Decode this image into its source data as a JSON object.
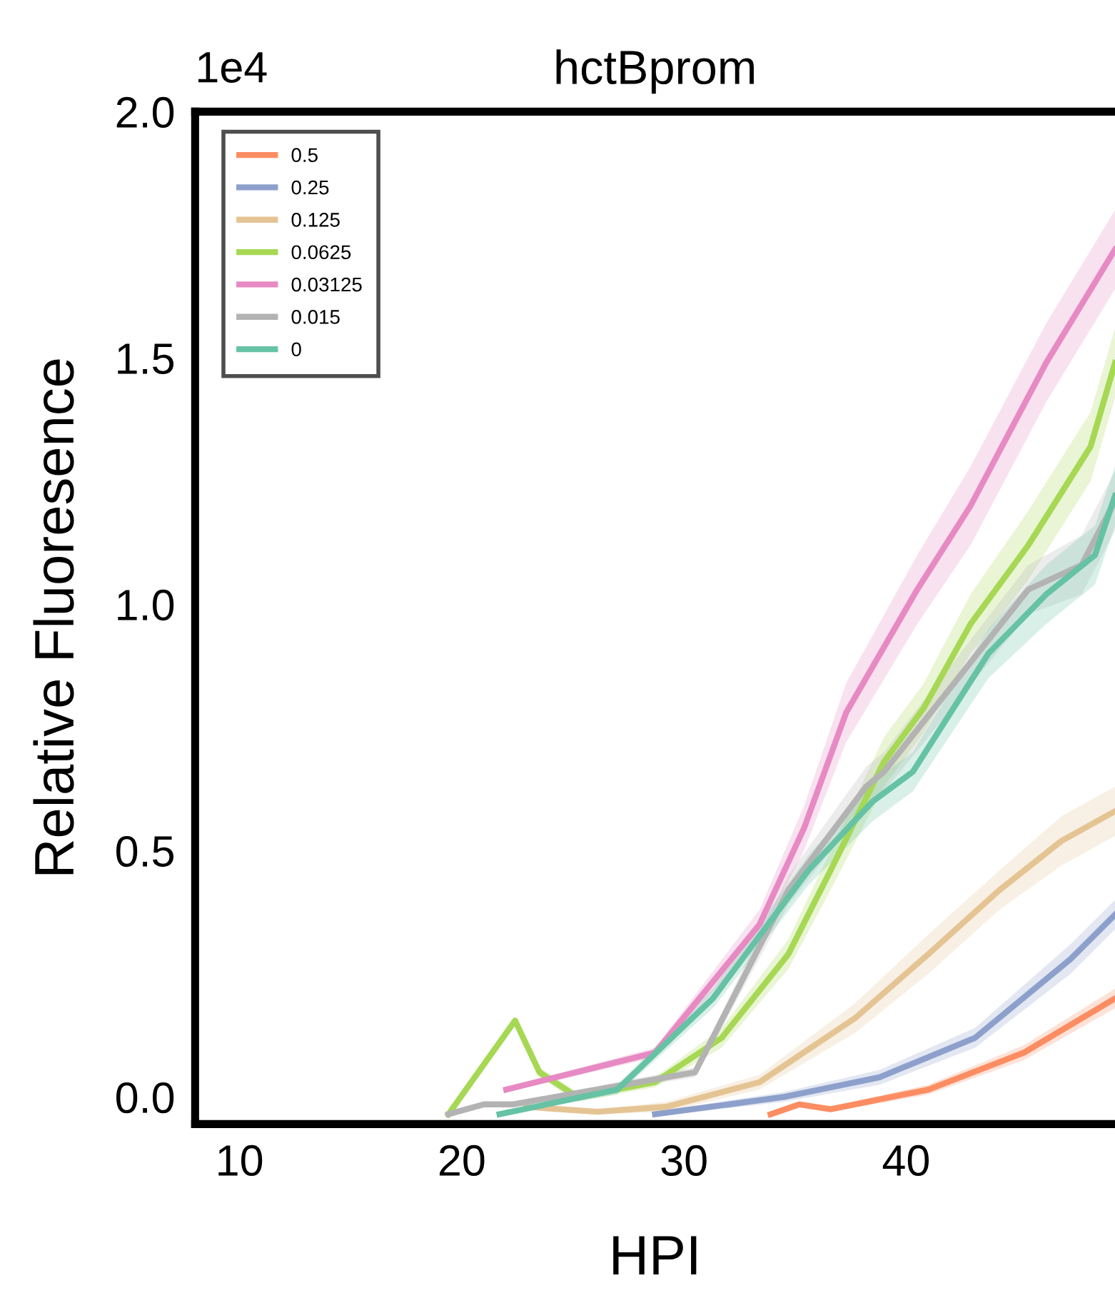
{
  "chart_data": {
    "type": "line",
    "title": "hctBprom",
    "xlabel": "HPI",
    "ylabel": "Relative Fluoresence",
    "annotations": [
      "1e4"
    ],
    "xlim": [
      8,
      49.4
    ],
    "ylim": [
      -0.055,
      2.0
    ],
    "xticks": [
      10,
      20,
      30,
      40
    ],
    "yticks": [
      {
        "value": 0,
        "label": "0.0"
      },
      0.5,
      {
        "value": 1,
        "label": "1.0"
      },
      1.5,
      {
        "value": 2,
        "label": "2.0"
      }
    ],
    "grid": false,
    "legend": "top left",
    "line_style": "solid",
    "marker": "none",
    "series": [
      {
        "name": "0.5",
        "color": "#fc8d62",
        "x": [
          33.9,
          35.2,
          36.6,
          41.0,
          45.3,
          49.4
        ],
        "values": [
          -0.035,
          -0.015,
          -0.025,
          0.015,
          0.09,
          0.2
        ],
        "lower": [
          -0.035,
          -0.02,
          -0.03,
          0.005,
          0.075,
          0.18
        ],
        "upper": [
          -0.035,
          -0.01,
          -0.02,
          0.025,
          0.105,
          0.22
        ]
      },
      {
        "name": "0.25",
        "color": "#8da0cb",
        "x": [
          28.7,
          34.5,
          38.8,
          43.1,
          47.4,
          49.4
        ],
        "values": [
          -0.035,
          0.0,
          0.04,
          0.12,
          0.28,
          0.37
        ],
        "lower": [
          -0.04,
          -0.01,
          0.025,
          0.1,
          0.25,
          0.34
        ],
        "upper": [
          -0.03,
          0.01,
          0.055,
          0.14,
          0.31,
          0.4
        ]
      },
      {
        "name": "0.125",
        "color": "#e5c494",
        "x": [
          22.9,
          26.1,
          29.2,
          33.4,
          37.7,
          41.0,
          44.2,
          47.0,
          49.4
        ],
        "values": [
          -0.02,
          -0.03,
          -0.02,
          0.03,
          0.16,
          0.29,
          0.42,
          0.52,
          0.58
        ],
        "lower": [
          -0.025,
          -0.035,
          -0.03,
          0.015,
          0.13,
          0.25,
          0.38,
          0.47,
          0.53
        ],
        "upper": [
          -0.015,
          -0.025,
          -0.01,
          0.045,
          0.19,
          0.33,
          0.46,
          0.57,
          0.63
        ]
      },
      {
        "name": "0.0625",
        "color": "#a6d854",
        "x": [
          19.4,
          22.4,
          23.5,
          25.2,
          28.7,
          31.7,
          34.7,
          36.6,
          39.0,
          40.8,
          42.9,
          45.5,
          48.3,
          49.4
        ],
        "values": [
          -0.035,
          0.155,
          0.05,
          0.0,
          0.03,
          0.12,
          0.29,
          0.46,
          0.68,
          0.79,
          0.96,
          1.12,
          1.32,
          1.49
        ],
        "lower": [
          -0.035,
          0.15,
          0.04,
          -0.01,
          0.02,
          0.1,
          0.26,
          0.42,
          0.63,
          0.74,
          0.9,
          1.05,
          1.25,
          1.42
        ],
        "upper": [
          -0.035,
          0.16,
          0.06,
          0.01,
          0.04,
          0.14,
          0.32,
          0.5,
          0.73,
          0.84,
          1.02,
          1.19,
          1.39,
          1.56
        ]
      },
      {
        "name": "0.03125",
        "color": "#e78ac3",
        "x": [
          22.0,
          28.7,
          33.4,
          35.4,
          37.3,
          40.5,
          42.9,
          46.3,
          49.4
        ],
        "values": [
          0.015,
          0.09,
          0.35,
          0.545,
          0.78,
          1.03,
          1.2,
          1.49,
          1.72
        ],
        "lower": [
          0.01,
          0.08,
          0.32,
          0.5,
          0.72,
          0.96,
          1.12,
          1.41,
          1.64
        ],
        "upper": [
          0.02,
          0.1,
          0.38,
          0.59,
          0.84,
          1.1,
          1.28,
          1.57,
          1.8
        ]
      },
      {
        "name": "0.015",
        "color": "#b3b3b3",
        "x": [
          19.4,
          21.0,
          22.3,
          30.5,
          34.7,
          38.2,
          39.0,
          45.5,
          47.9,
          49.4
        ],
        "values": [
          -0.035,
          -0.015,
          -0.015,
          0.05,
          0.42,
          0.63,
          0.66,
          1.03,
          1.08,
          1.21
        ],
        "lower": [
          -0.035,
          -0.02,
          -0.02,
          0.04,
          0.39,
          0.59,
          0.62,
          0.98,
          1.02,
          1.15
        ],
        "upper": [
          -0.035,
          -0.01,
          -0.01,
          0.06,
          0.45,
          0.67,
          0.7,
          1.08,
          1.14,
          1.27
        ]
      },
      {
        "name": "0",
        "color": "#66c2a5",
        "x": [
          21.7,
          27.0,
          31.3,
          35.6,
          38.5,
          40.3,
          43.7,
          46.3,
          48.5,
          49.4
        ],
        "values": [
          -0.035,
          0.015,
          0.2,
          0.46,
          0.6,
          0.66,
          0.9,
          1.02,
          1.1,
          1.22
        ],
        "lower": [
          -0.035,
          0.005,
          0.18,
          0.43,
          0.56,
          0.62,
          0.85,
          0.96,
          1.04,
          1.16
        ],
        "upper": [
          -0.035,
          0.025,
          0.22,
          0.49,
          0.64,
          0.7,
          0.95,
          1.08,
          1.16,
          1.28
        ]
      }
    ]
  }
}
